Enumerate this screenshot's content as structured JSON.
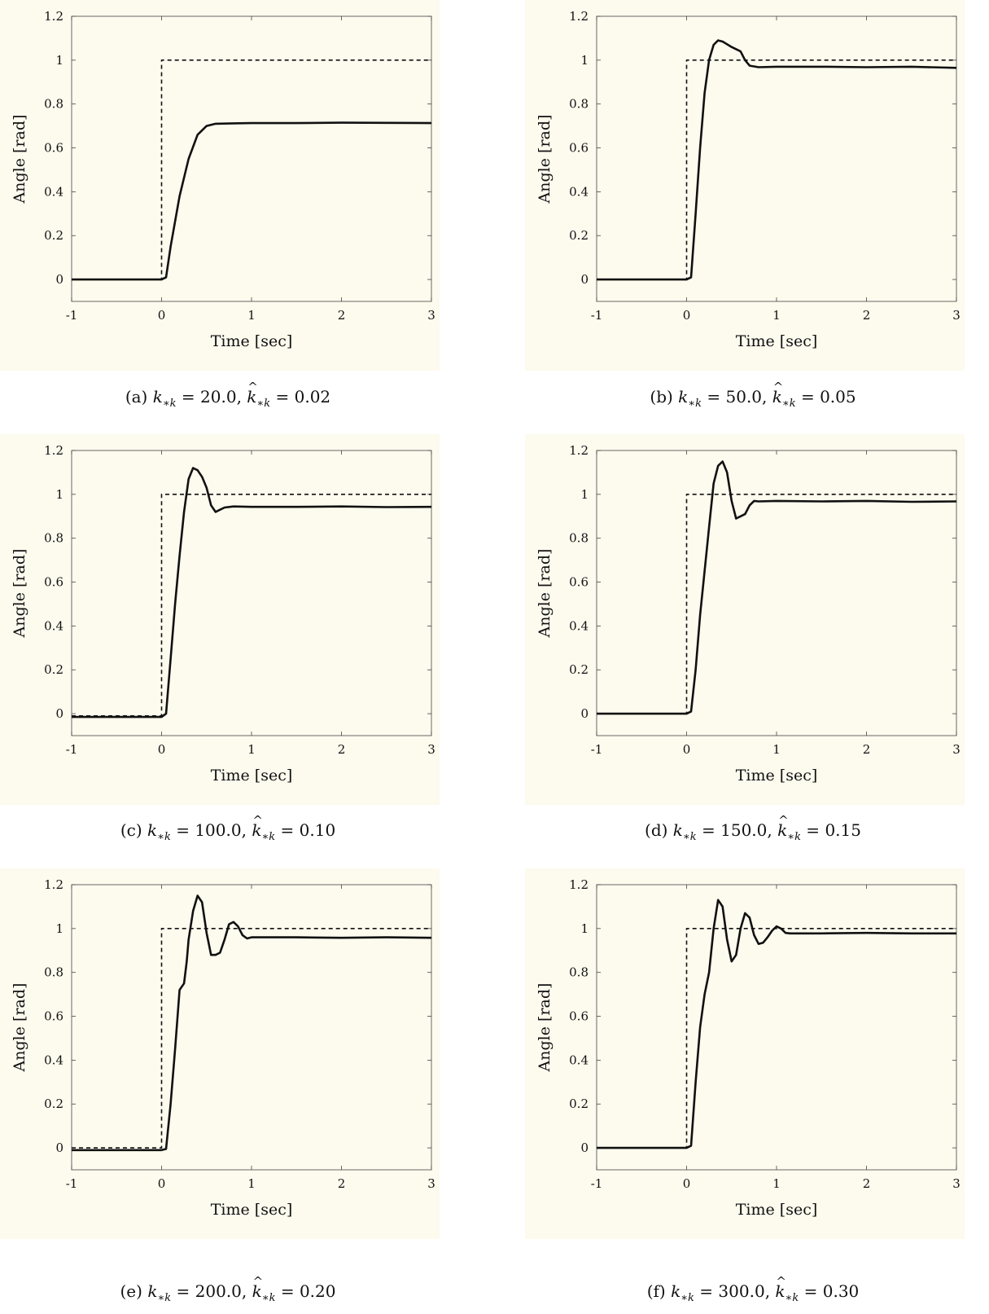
{
  "chart_data": [
    {
      "panel": "a",
      "type": "line",
      "xlabel": "Time [sec]",
      "ylabel": "Angle [rad]",
      "xlim": [
        -1,
        3
      ],
      "ylim": [
        -0.1,
        1.2
      ],
      "xticks": [
        "-1",
        "0",
        "1",
        "2",
        "3"
      ],
      "yticks": [
        "0",
        "0.2",
        "0.4",
        "0.6",
        "0.8",
        "1",
        "1.2"
      ],
      "caption": {
        "label": "(a)",
        "k": "20.0",
        "khat": "0.02"
      },
      "series": [
        {
          "style": "dashed",
          "x": [
            -1,
            0,
            0,
            3
          ],
          "y": [
            0,
            0,
            1,
            1
          ]
        },
        {
          "style": "solid",
          "x": [
            -1,
            0,
            0.05,
            0.1,
            0.2,
            0.3,
            0.4,
            0.5,
            0.6,
            0.8,
            1.0,
            1.5,
            2.0,
            2.5,
            3.0
          ],
          "y": [
            0,
            0,
            0.01,
            0.15,
            0.38,
            0.55,
            0.66,
            0.7,
            0.71,
            0.712,
            0.713,
            0.713,
            0.715,
            0.714,
            0.713
          ]
        }
      ]
    },
    {
      "panel": "b",
      "type": "line",
      "xlabel": "Time [sec]",
      "ylabel": "Angle [rad]",
      "xlim": [
        -1,
        3
      ],
      "ylim": [
        -0.1,
        1.2
      ],
      "xticks": [
        "-1",
        "0",
        "1",
        "2",
        "3"
      ],
      "yticks": [
        "0",
        "0.2",
        "0.4",
        "0.6",
        "0.8",
        "1",
        "1.2"
      ],
      "caption": {
        "label": "(b)",
        "k": "50.0",
        "khat": "0.05"
      },
      "series": [
        {
          "style": "dashed",
          "x": [
            -1,
            0,
            0,
            3
          ],
          "y": [
            0,
            0,
            1,
            1
          ]
        },
        {
          "style": "solid",
          "x": [
            -1,
            0,
            0.05,
            0.1,
            0.15,
            0.2,
            0.25,
            0.3,
            0.35,
            0.4,
            0.5,
            0.6,
            0.65,
            0.7,
            0.8,
            1.0,
            1.5,
            2.0,
            2.5,
            3.0
          ],
          "y": [
            0,
            0,
            0.01,
            0.3,
            0.6,
            0.85,
            1.0,
            1.07,
            1.09,
            1.085,
            1.06,
            1.04,
            1.0,
            0.975,
            0.968,
            0.97,
            0.97,
            0.968,
            0.97,
            0.965
          ]
        }
      ]
    },
    {
      "panel": "c",
      "type": "line",
      "xlabel": "Time [sec]",
      "ylabel": "Angle [rad]",
      "xlim": [
        -1,
        3
      ],
      "ylim": [
        -0.1,
        1.2
      ],
      "xticks": [
        "-1",
        "0",
        "1",
        "2",
        "3"
      ],
      "yticks": [
        "0",
        "0.2",
        "0.4",
        "0.6",
        "0.8",
        "1",
        "1.2"
      ],
      "caption": {
        "label": "(c)",
        "k": "100.0",
        "khat": "0.10"
      },
      "series": [
        {
          "style": "dashed",
          "x": [
            -1,
            0,
            0,
            3
          ],
          "y": [
            -0.01,
            -0.01,
            1,
            1
          ]
        },
        {
          "style": "solid",
          "x": [
            -1,
            0,
            0.05,
            0.1,
            0.15,
            0.2,
            0.25,
            0.3,
            0.35,
            0.4,
            0.45,
            0.5,
            0.55,
            0.6,
            0.65,
            0.7,
            0.8,
            1.0,
            1.5,
            2.0,
            2.5,
            3.0
          ],
          "y": [
            -0.015,
            -0.015,
            0.0,
            0.25,
            0.5,
            0.72,
            0.92,
            1.07,
            1.12,
            1.11,
            1.08,
            1.03,
            0.95,
            0.92,
            0.93,
            0.94,
            0.945,
            0.943,
            0.943,
            0.945,
            0.942,
            0.943
          ]
        }
      ]
    },
    {
      "panel": "d",
      "type": "line",
      "xlabel": "Time [sec]",
      "ylabel": "Angle [rad]",
      "xlim": [
        -1,
        3
      ],
      "ylim": [
        -0.1,
        1.2
      ],
      "xticks": [
        "-1",
        "0",
        "1",
        "2",
        "3"
      ],
      "yticks": [
        "0",
        "0.2",
        "0.4",
        "0.6",
        "0.8",
        "1",
        "1.2"
      ],
      "caption": {
        "label": "(d)",
        "k": "150.0",
        "khat": "0.15"
      },
      "series": [
        {
          "style": "dashed",
          "x": [
            -1,
            0,
            0,
            3
          ],
          "y": [
            0,
            0,
            1,
            1
          ]
        },
        {
          "style": "solid",
          "x": [
            -1,
            0,
            0.05,
            0.1,
            0.15,
            0.2,
            0.25,
            0.3,
            0.35,
            0.4,
            0.45,
            0.5,
            0.55,
            0.6,
            0.65,
            0.7,
            0.75,
            0.8,
            1.0,
            1.5,
            2.0,
            2.5,
            3.0
          ],
          "y": [
            0,
            0,
            0.01,
            0.2,
            0.45,
            0.65,
            0.85,
            1.05,
            1.13,
            1.15,
            1.1,
            0.97,
            0.89,
            0.9,
            0.91,
            0.95,
            0.97,
            0.968,
            0.97,
            0.968,
            0.97,
            0.966,
            0.968
          ]
        }
      ]
    },
    {
      "panel": "e",
      "type": "line",
      "xlabel": "Time [sec]",
      "ylabel": "Angle [rad]",
      "xlim": [
        -1,
        3
      ],
      "ylim": [
        -0.1,
        1.2
      ],
      "xticks": [
        "-1",
        "0",
        "1",
        "2",
        "3"
      ],
      "yticks": [
        "0",
        "0.2",
        "0.4",
        "0.6",
        "0.8",
        "1",
        "1.2"
      ],
      "caption": {
        "label": "(e)",
        "k": "200.0",
        "khat": "0.20"
      },
      "series": [
        {
          "style": "dashed",
          "x": [
            -1,
            0,
            0,
            3
          ],
          "y": [
            0,
            0,
            1,
            1
          ]
        },
        {
          "style": "solid",
          "x": [
            -1,
            0,
            0.05,
            0.1,
            0.15,
            0.2,
            0.25,
            0.28,
            0.3,
            0.35,
            0.4,
            0.45,
            0.5,
            0.55,
            0.6,
            0.65,
            0.7,
            0.75,
            0.8,
            0.85,
            0.9,
            0.95,
            1.0,
            1.5,
            2.0,
            2.5,
            3.0
          ],
          "y": [
            -0.01,
            -0.01,
            -0.005,
            0.2,
            0.45,
            0.72,
            0.75,
            0.85,
            0.95,
            1.08,
            1.15,
            1.12,
            0.98,
            0.88,
            0.88,
            0.89,
            0.95,
            1.02,
            1.03,
            1.01,
            0.97,
            0.955,
            0.96,
            0.96,
            0.958,
            0.96,
            0.958
          ]
        }
      ]
    },
    {
      "panel": "f",
      "type": "line",
      "xlabel": "Time [sec]",
      "ylabel": "Angle [rad]",
      "xlim": [
        -1,
        3
      ],
      "ylim": [
        -0.1,
        1.2
      ],
      "xticks": [
        "-1",
        "0",
        "1",
        "2",
        "3"
      ],
      "yticks": [
        "0",
        "0.2",
        "0.4",
        "0.6",
        "0.8",
        "1",
        "1.2"
      ],
      "caption": {
        "label": "(f)",
        "k": "300.0",
        "khat": "0.30"
      },
      "series": [
        {
          "style": "dashed",
          "x": [
            -1,
            0,
            0,
            3
          ],
          "y": [
            0,
            0,
            1,
            1
          ]
        },
        {
          "style": "solid",
          "x": [
            -1,
            0,
            0.05,
            0.1,
            0.15,
            0.2,
            0.25,
            0.3,
            0.35,
            0.4,
            0.45,
            0.5,
            0.55,
            0.6,
            0.65,
            0.7,
            0.75,
            0.8,
            0.85,
            0.9,
            0.95,
            1.0,
            1.05,
            1.1,
            1.15,
            1.5,
            2.0,
            2.5,
            3.0
          ],
          "y": [
            0,
            0,
            0.01,
            0.3,
            0.55,
            0.7,
            0.8,
            1.0,
            1.13,
            1.1,
            0.95,
            0.85,
            0.88,
            1.0,
            1.07,
            1.05,
            0.97,
            0.93,
            0.935,
            0.96,
            0.99,
            1.01,
            1.0,
            0.98,
            0.978,
            0.978,
            0.98,
            0.978,
            0.978
          ]
        }
      ]
    }
  ]
}
